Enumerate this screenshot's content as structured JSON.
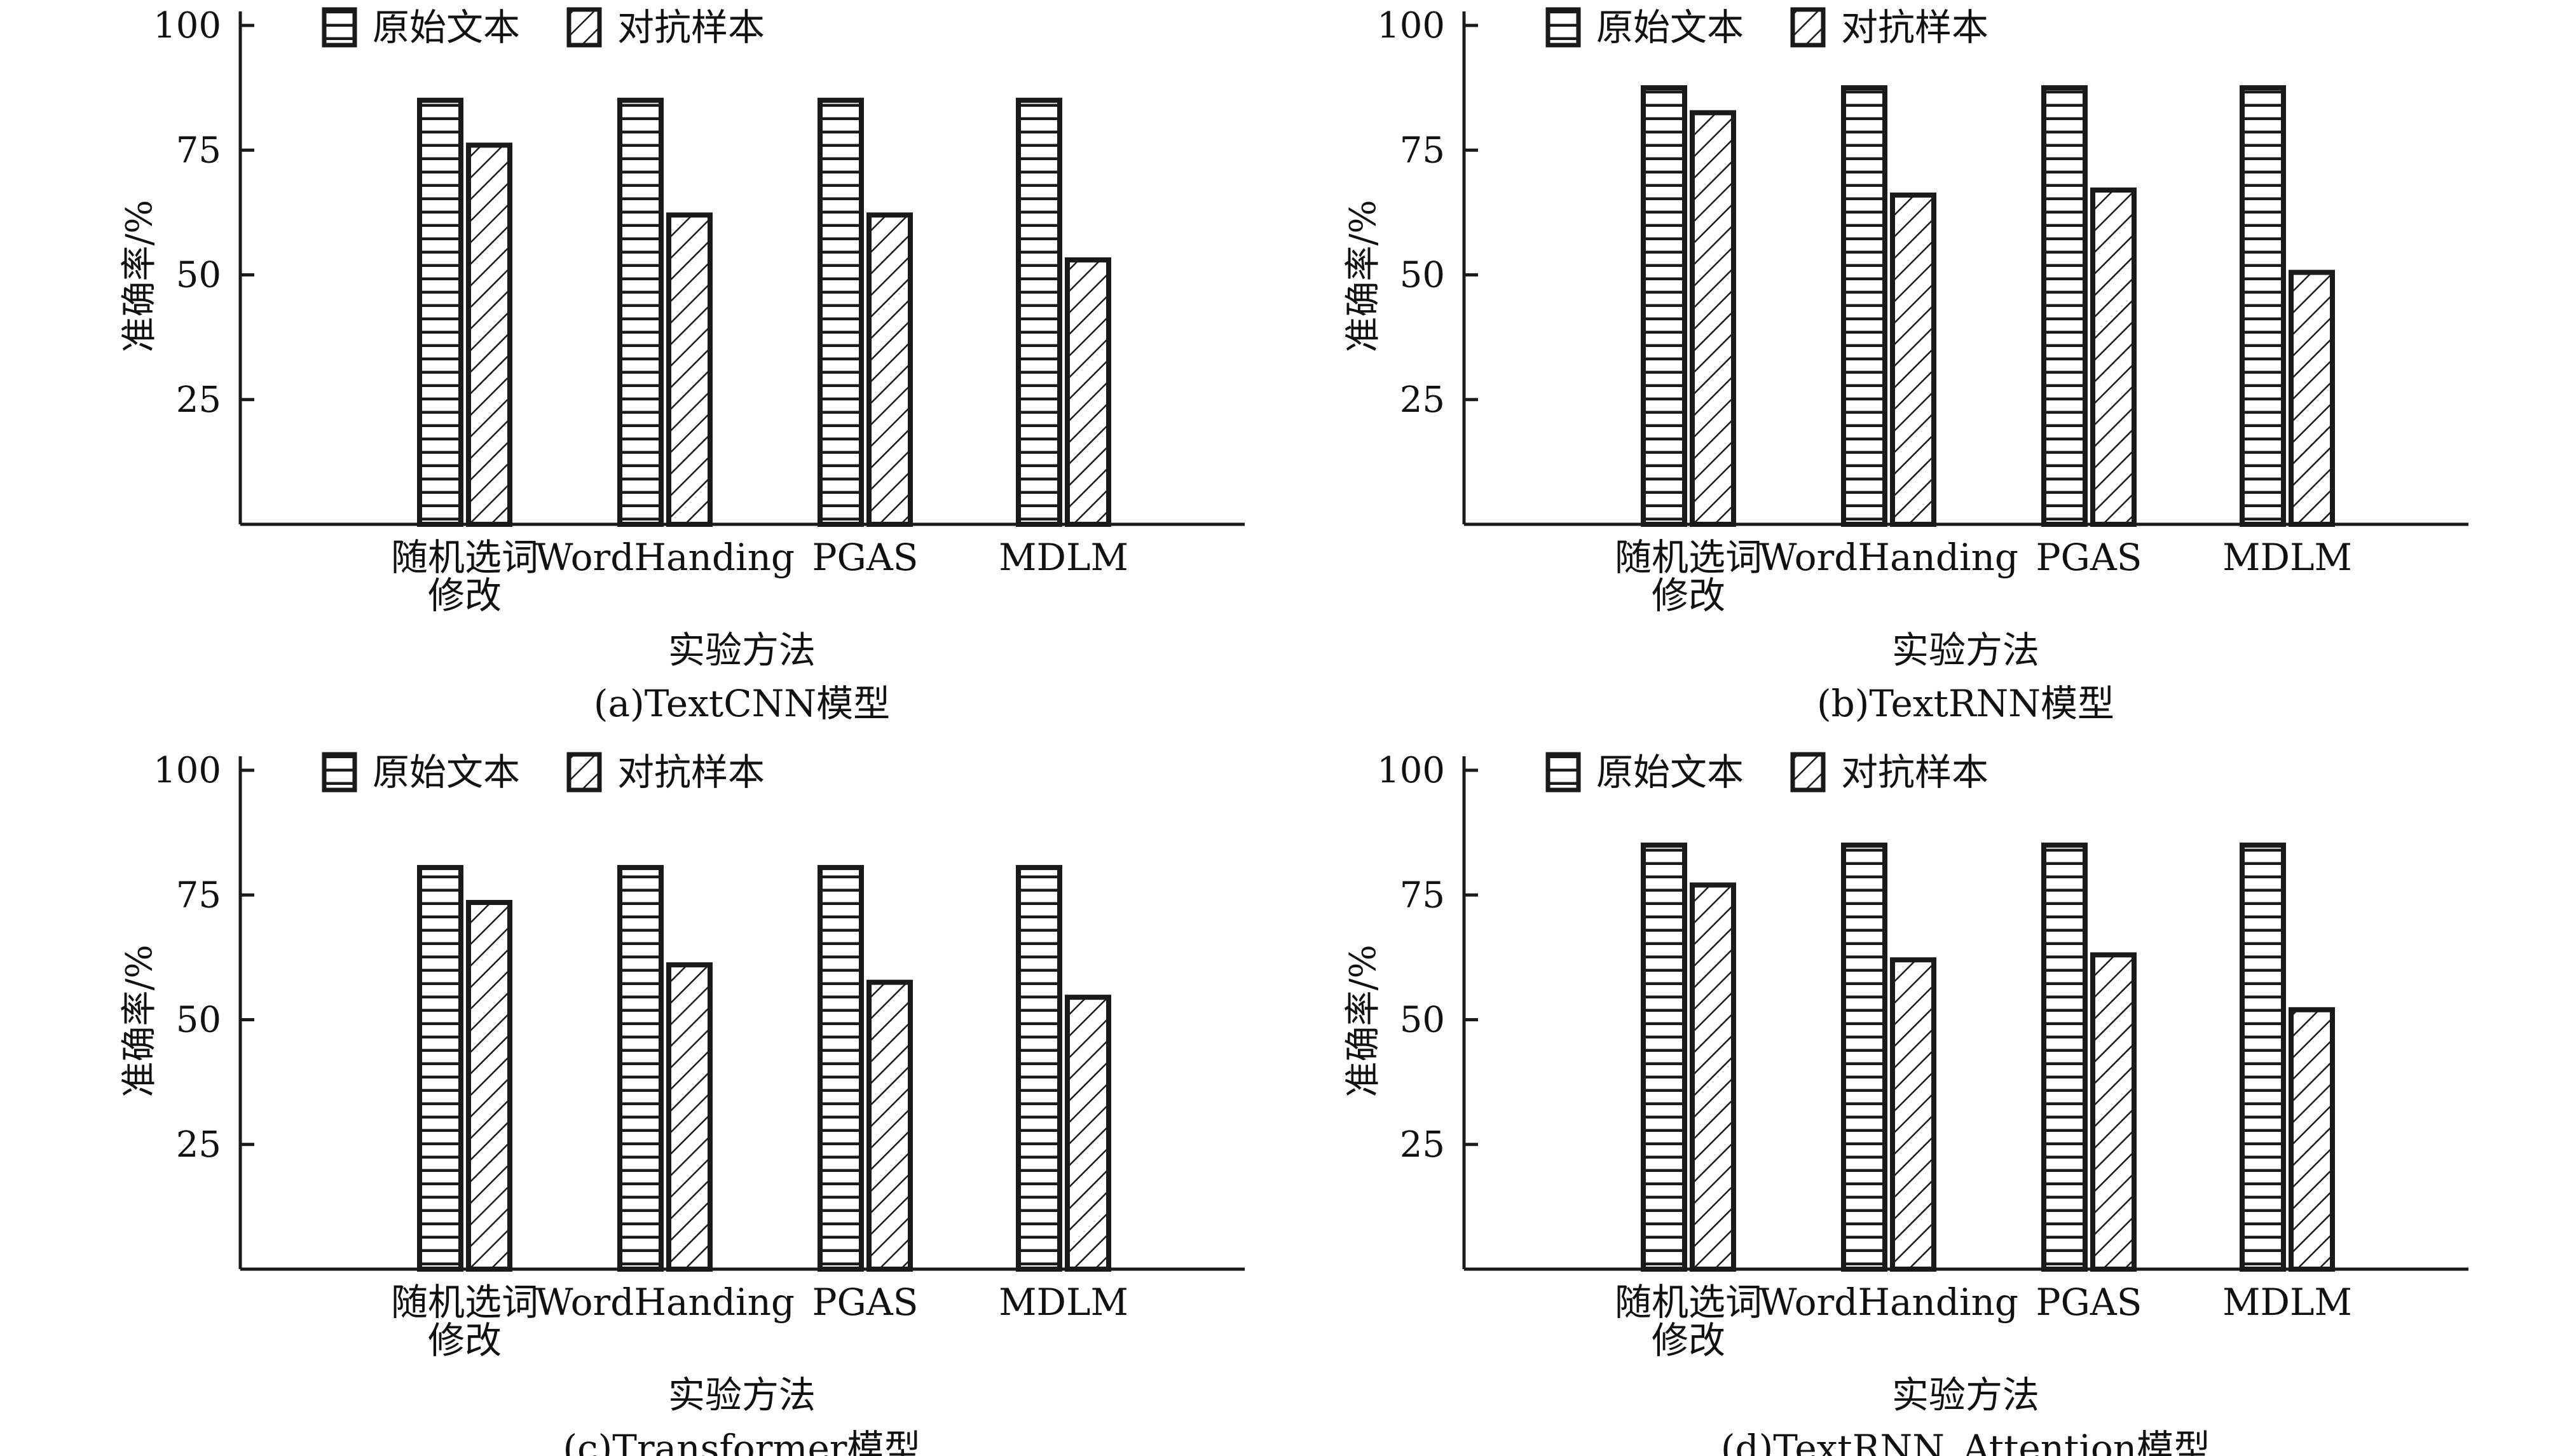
{
  "colors": {
    "ink": "#1a1a1a",
    "bar_fill": "#ffffff"
  },
  "legend": {
    "original": {
      "label": "原始文本",
      "pattern": "horizontal-lines"
    },
    "adversarial": {
      "label": "对抗样本",
      "pattern": "diagonal-hatch"
    }
  },
  "chart_data": [
    {
      "type": "bar",
      "caption": "(a)TextCNN模型",
      "xlabel": "实验方法",
      "ylabel": "准确率/%",
      "yticks": [
        "25",
        "50",
        "75",
        "100"
      ],
      "ylim": [
        0,
        100
      ],
      "categories": [
        "随机选词\n修改",
        "WordHanding",
        "PGAS",
        "MDLM"
      ],
      "series": [
        {
          "name": "原始文本",
          "values": [
            85,
            85,
            85,
            85
          ]
        },
        {
          "name": "对抗样本",
          "values": [
            76,
            62,
            62,
            53
          ]
        }
      ],
      "legend_position": "top-left"
    },
    {
      "type": "bar",
      "caption": "(b)TextRNN模型",
      "xlabel": "实验方法",
      "ylabel": "准确率/%",
      "yticks": [
        "25",
        "50",
        "75",
        "100"
      ],
      "ylim": [
        0,
        100
      ],
      "categories": [
        "随机选词\n修改",
        "WordHanding",
        "PGAS",
        "MDLM"
      ],
      "series": [
        {
          "name": "原始文本",
          "values": [
            87.5,
            87.5,
            87.5,
            87.5
          ]
        },
        {
          "name": "对抗样本",
          "values": [
            82.5,
            66,
            67,
            50.5
          ]
        }
      ],
      "legend_position": "top-left"
    },
    {
      "type": "bar",
      "caption": "(c)Transformer模型",
      "xlabel": "实验方法",
      "ylabel": "准确率/%",
      "yticks": [
        "25",
        "50",
        "75",
        "100"
      ],
      "ylim": [
        0,
        100
      ],
      "categories": [
        "随机选词\n修改",
        "WordHanding",
        "PGAS",
        "MDLM"
      ],
      "series": [
        {
          "name": "原始文本",
          "values": [
            80.5,
            80.5,
            80.5,
            80.5
          ]
        },
        {
          "name": "对抗样本",
          "values": [
            73.5,
            61,
            57.5,
            54.5
          ]
        }
      ],
      "legend_position": "top-left"
    },
    {
      "type": "bar",
      "caption": "(d)TextRNN_Attention模型",
      "xlabel": "实验方法",
      "ylabel": "准确率/%",
      "yticks": [
        "25",
        "50",
        "75",
        "100"
      ],
      "ylim": [
        0,
        100
      ],
      "categories": [
        "随机选词\n修改",
        "WordHanding",
        "PGAS",
        "MDLM"
      ],
      "series": [
        {
          "name": "原始文本",
          "values": [
            85,
            85,
            85,
            85
          ]
        },
        {
          "name": "对抗样本",
          "values": [
            77,
            62,
            63,
            52
          ]
        }
      ],
      "legend_position": "top-left"
    }
  ]
}
